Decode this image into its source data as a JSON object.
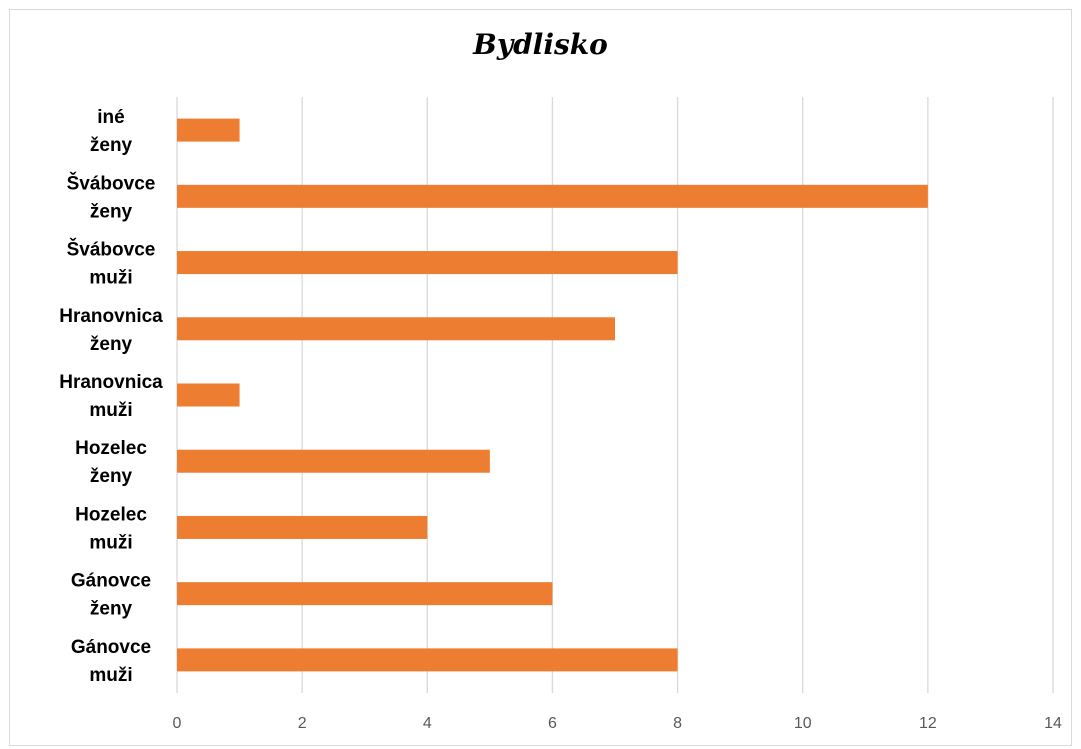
{
  "chart_data": {
    "type": "bar",
    "orientation": "horizontal",
    "title": "Bydlisko",
    "categories": [
      [
        "Gánovce",
        "muži"
      ],
      [
        "Gánovce",
        "ženy"
      ],
      [
        "Hozelec",
        "muži"
      ],
      [
        "Hozelec",
        "ženy"
      ],
      [
        "Hranovnica",
        "muži"
      ],
      [
        "Hranovnica",
        "ženy"
      ],
      [
        "Švábovce",
        "muži"
      ],
      [
        "Švábovce",
        "ženy"
      ],
      [
        "iné",
        "ženy"
      ]
    ],
    "values": [
      8,
      6,
      4,
      5,
      1,
      7,
      8,
      12,
      1
    ],
    "xlim": [
      0,
      14
    ],
    "x_ticks": [
      "0",
      "2",
      "4",
      "6",
      "8",
      "10",
      "12",
      "14"
    ],
    "xlabel": "",
    "ylabel": "",
    "grid": true,
    "legend": "none",
    "colors": {
      "bar": "#ed7d31",
      "grid": "#d9d9d9",
      "tick_text": "#595959"
    }
  }
}
